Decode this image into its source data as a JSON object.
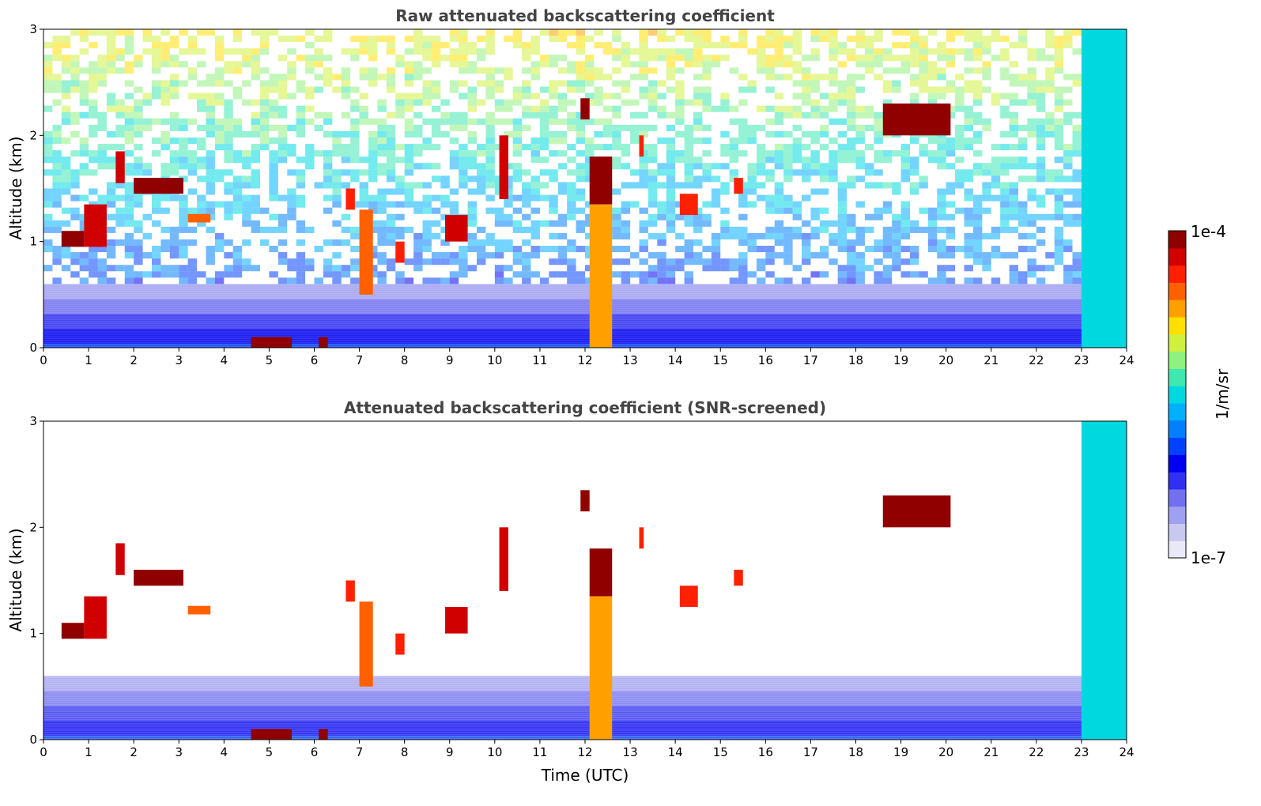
{
  "chart_data": [
    {
      "type": "heatmap",
      "title": "Raw attenuated backscattering coefficient",
      "xlabel": "",
      "ylabel": "Altitude (km)",
      "xlim": [
        0,
        24
      ],
      "ylim": [
        0,
        3
      ],
      "x_ticks": [
        "0",
        "1",
        "2",
        "3",
        "4",
        "5",
        "6",
        "7",
        "8",
        "9",
        "10",
        "11",
        "12",
        "13",
        "14",
        "15",
        "16",
        "17",
        "18",
        "19",
        "20",
        "21",
        "22",
        "23",
        "24"
      ],
      "y_ticks": [
        "0",
        "1",
        "2",
        "3"
      ],
      "noise": true,
      "features": [
        {
          "t0": 0.4,
          "t1": 0.9,
          "h0": 0.95,
          "h1": 1.1,
          "level": 1.0
        },
        {
          "t0": 0.9,
          "t1": 1.4,
          "h0": 0.95,
          "h1": 1.35,
          "level": 0.95
        },
        {
          "t0": 1.6,
          "t1": 1.8,
          "h0": 1.55,
          "h1": 1.85,
          "level": 0.95
        },
        {
          "t0": 2.0,
          "t1": 3.1,
          "h0": 1.45,
          "h1": 1.6,
          "level": 1.0
        },
        {
          "t0": 3.2,
          "t1": 3.7,
          "h0": 1.18,
          "h1": 1.26,
          "level": 0.85
        },
        {
          "t0": 4.6,
          "t1": 5.5,
          "h0": 0.0,
          "h1": 0.1,
          "level": 1.0
        },
        {
          "t0": 6.1,
          "t1": 6.3,
          "h0": 0.0,
          "h1": 0.1,
          "level": 1.0
        },
        {
          "t0": 6.7,
          "t1": 6.9,
          "h0": 1.3,
          "h1": 1.5,
          "level": 0.9
        },
        {
          "t0": 7.0,
          "t1": 7.3,
          "h0": 0.5,
          "h1": 1.3,
          "level": 0.85
        },
        {
          "t0": 7.8,
          "t1": 8.0,
          "h0": 0.8,
          "h1": 1.0,
          "level": 0.9
        },
        {
          "t0": 8.9,
          "t1": 9.4,
          "h0": 1.0,
          "h1": 1.25,
          "level": 0.95
        },
        {
          "t0": 10.1,
          "t1": 10.3,
          "h0": 1.4,
          "h1": 2.0,
          "level": 0.95
        },
        {
          "t0": 11.9,
          "t1": 12.1,
          "h0": 2.15,
          "h1": 2.35,
          "level": 1.0
        },
        {
          "t0": 12.1,
          "t1": 12.6,
          "h0": 1.35,
          "h1": 1.8,
          "level": 1.0
        },
        {
          "t0": 12.1,
          "t1": 12.6,
          "h0": 0.0,
          "h1": 1.35,
          "level": 0.75
        },
        {
          "t0": 13.2,
          "t1": 13.3,
          "h0": 1.8,
          "h1": 2.0,
          "level": 0.9
        },
        {
          "t0": 14.1,
          "t1": 14.5,
          "h0": 1.25,
          "h1": 1.45,
          "level": 0.9
        },
        {
          "t0": 15.3,
          "t1": 15.5,
          "h0": 1.45,
          "h1": 1.6,
          "level": 0.9
        },
        {
          "t0": 18.6,
          "t1": 20.1,
          "h0": 2.0,
          "h1": 2.3,
          "level": 1.0
        },
        {
          "t0": 23.2,
          "t1": 24.0,
          "h0": 0.0,
          "h1": 0.05,
          "level": 1.0
        },
        {
          "t0": 23.0,
          "t1": 24.0,
          "h0": 0.0,
          "h1": 3.0,
          "level": 0.5
        }
      ]
    },
    {
      "type": "heatmap",
      "title": "Attenuated backscattering coefficient (SNR-screened)",
      "xlabel": "Time (UTC)",
      "ylabel": "Altitude (km)",
      "xlim": [
        0,
        24
      ],
      "ylim": [
        0,
        3
      ],
      "x_ticks": [
        "0",
        "1",
        "2",
        "3",
        "4",
        "5",
        "6",
        "7",
        "8",
        "9",
        "10",
        "11",
        "12",
        "13",
        "14",
        "15",
        "16",
        "17",
        "18",
        "19",
        "20",
        "21",
        "22",
        "23",
        "24"
      ],
      "y_ticks": [
        "0",
        "1",
        "2",
        "3"
      ],
      "noise": false,
      "features": [
        {
          "t0": 0.4,
          "t1": 0.9,
          "h0": 0.95,
          "h1": 1.1,
          "level": 1.0
        },
        {
          "t0": 0.9,
          "t1": 1.4,
          "h0": 0.95,
          "h1": 1.35,
          "level": 0.95
        },
        {
          "t0": 1.6,
          "t1": 1.8,
          "h0": 1.55,
          "h1": 1.85,
          "level": 0.95
        },
        {
          "t0": 2.0,
          "t1": 3.1,
          "h0": 1.45,
          "h1": 1.6,
          "level": 1.0
        },
        {
          "t0": 3.2,
          "t1": 3.7,
          "h0": 1.18,
          "h1": 1.26,
          "level": 0.85
        },
        {
          "t0": 4.6,
          "t1": 5.5,
          "h0": 0.0,
          "h1": 0.1,
          "level": 1.0
        },
        {
          "t0": 6.1,
          "t1": 6.3,
          "h0": 0.0,
          "h1": 0.1,
          "level": 1.0
        },
        {
          "t0": 6.7,
          "t1": 6.9,
          "h0": 1.3,
          "h1": 1.5,
          "level": 0.9
        },
        {
          "t0": 7.0,
          "t1": 7.3,
          "h0": 0.5,
          "h1": 1.3,
          "level": 0.85
        },
        {
          "t0": 7.8,
          "t1": 8.0,
          "h0": 0.8,
          "h1": 1.0,
          "level": 0.9
        },
        {
          "t0": 8.9,
          "t1": 9.4,
          "h0": 1.0,
          "h1": 1.25,
          "level": 0.95
        },
        {
          "t0": 10.1,
          "t1": 10.3,
          "h0": 1.4,
          "h1": 2.0,
          "level": 0.95
        },
        {
          "t0": 11.9,
          "t1": 12.1,
          "h0": 2.15,
          "h1": 2.35,
          "level": 1.0
        },
        {
          "t0": 12.1,
          "t1": 12.6,
          "h0": 1.35,
          "h1": 1.8,
          "level": 1.0
        },
        {
          "t0": 12.1,
          "t1": 12.6,
          "h0": 0.0,
          "h1": 1.35,
          "level": 0.75
        },
        {
          "t0": 13.2,
          "t1": 13.3,
          "h0": 1.8,
          "h1": 2.0,
          "level": 0.9
        },
        {
          "t0": 14.1,
          "t1": 14.5,
          "h0": 1.25,
          "h1": 1.45,
          "level": 0.9
        },
        {
          "t0": 15.3,
          "t1": 15.5,
          "h0": 1.45,
          "h1": 1.6,
          "level": 0.9
        },
        {
          "t0": 18.6,
          "t1": 20.1,
          "h0": 2.0,
          "h1": 2.3,
          "level": 1.0
        },
        {
          "t0": 23.2,
          "t1": 24.0,
          "h0": 0.0,
          "h1": 0.05,
          "level": 1.0
        },
        {
          "t0": 23.0,
          "t1": 24.0,
          "h0": 0.0,
          "h1": 3.0,
          "level": 0.5
        }
      ]
    }
  ],
  "colorbar": {
    "label": "1/m/sr",
    "max_label": "1e-4",
    "min_label": "1e-7",
    "colors": [
      "#e8e8f8",
      "#c8c8f0",
      "#a0a0f0",
      "#7070f0",
      "#3030f0",
      "#0000f0",
      "#0040ff",
      "#0080ff",
      "#00b0ff",
      "#00d8e0",
      "#40e8b0",
      "#90f080",
      "#d0f040",
      "#ffe000",
      "#ffa000",
      "#ff6000",
      "#ff2000",
      "#d00000",
      "#900000"
    ]
  }
}
